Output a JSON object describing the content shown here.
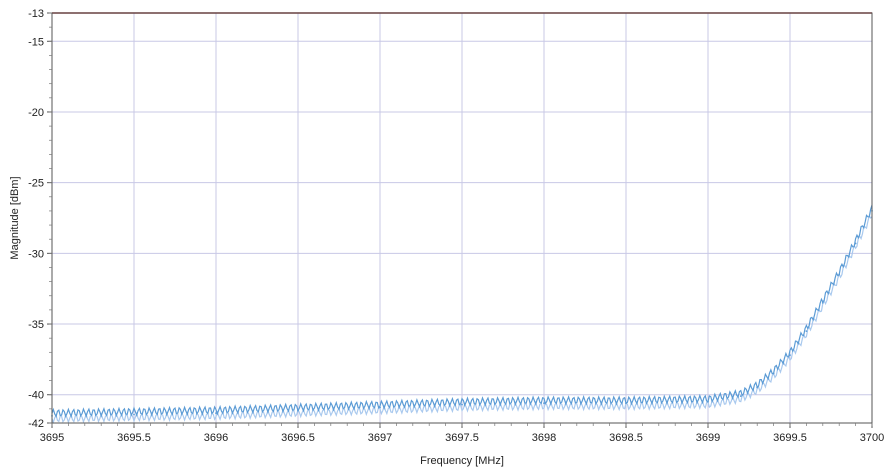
{
  "chart_data": {
    "type": "line",
    "xlabel": "Frequency [MHz]",
    "ylabel": "Magnitude [dBm]",
    "xlim": [
      3695,
      3700
    ],
    "ylim": [
      -42,
      -13
    ],
    "x_ticks": [
      "3695",
      "3695.5",
      "3696",
      "3696.5",
      "3697",
      "3697.5",
      "3698",
      "3698.5",
      "3699",
      "3699.5",
      "3700"
    ],
    "y_ticks": [
      "-13",
      "-15",
      "-20",
      "-25",
      "-30",
      "-35",
      "-40",
      "-42"
    ],
    "grid": true,
    "reference_line": {
      "y": -13,
      "color": "#8b1a1a"
    },
    "series": [
      {
        "color": "#5b9bd5",
        "x": [
          3695,
          3695.5,
          3696,
          3696.5,
          3697,
          3697.5,
          3698,
          3698.5,
          3699,
          3699.2,
          3699.3,
          3699.4,
          3699.5,
          3699.6,
          3699.7,
          3699.8,
          3699.9,
          3700
        ],
        "y": [
          -41.5,
          -41.4,
          -41.3,
          -41.1,
          -40.9,
          -40.7,
          -40.6,
          -40.6,
          -40.5,
          -40.1,
          -39.5,
          -38.5,
          -37.2,
          -35.5,
          -33.5,
          -31.5,
          -29.3,
          -27.0
        ]
      }
    ]
  }
}
